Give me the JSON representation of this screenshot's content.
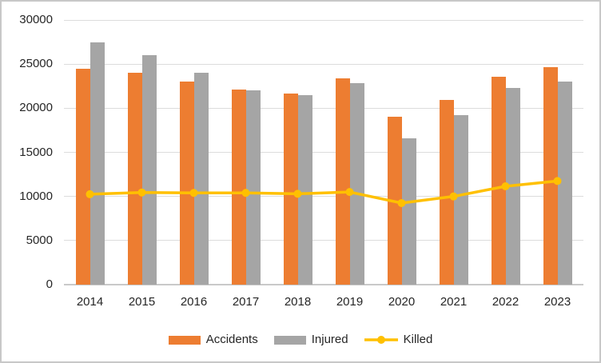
{
  "chart_data": {
    "type": "bar",
    "subtype": "combo-bar-line",
    "title": "",
    "xlabel": "",
    "ylabel": "",
    "categories": [
      "2014",
      "2015",
      "2016",
      "2017",
      "2018",
      "2019",
      "2020",
      "2021",
      "2022",
      "2023"
    ],
    "series": [
      {
        "name": "Accidents",
        "type": "bar",
        "color": "#ED7D31",
        "values": [
          24500,
          24000,
          23050,
          22100,
          21650,
          23400,
          19000,
          20900,
          23550,
          24650
        ]
      },
      {
        "name": "Injured",
        "type": "bar",
        "color": "#A5A5A5",
        "values": [
          27450,
          26050,
          24050,
          22000,
          21500,
          22850,
          16600,
          19200,
          22300,
          23050
        ]
      },
      {
        "name": "Killed",
        "type": "line",
        "color": "#FFC000",
        "values": [
          10250,
          10450,
          10400,
          10400,
          10300,
          10500,
          9250,
          10000,
          11150,
          11750
        ]
      }
    ],
    "y_axis": {
      "min": 0,
      "max": 30000,
      "step": 5000,
      "tick_labels": [
        "0",
        "5000",
        "10000",
        "15000",
        "20000",
        "25000",
        "30000"
      ]
    },
    "grid": true,
    "grid_color": "#DCDCDC",
    "axis_line_color": "#C9C9C9",
    "legend_position": "bottom",
    "legend": [
      {
        "label": "Accidents",
        "swatch": "bar-swatch",
        "color": "#ED7D31"
      },
      {
        "label": "Injured",
        "swatch": "bar-swatch",
        "color": "#A5A5A5"
      },
      {
        "label": "Killed",
        "swatch": "line-swatch",
        "color": "#FFC000"
      }
    ]
  }
}
